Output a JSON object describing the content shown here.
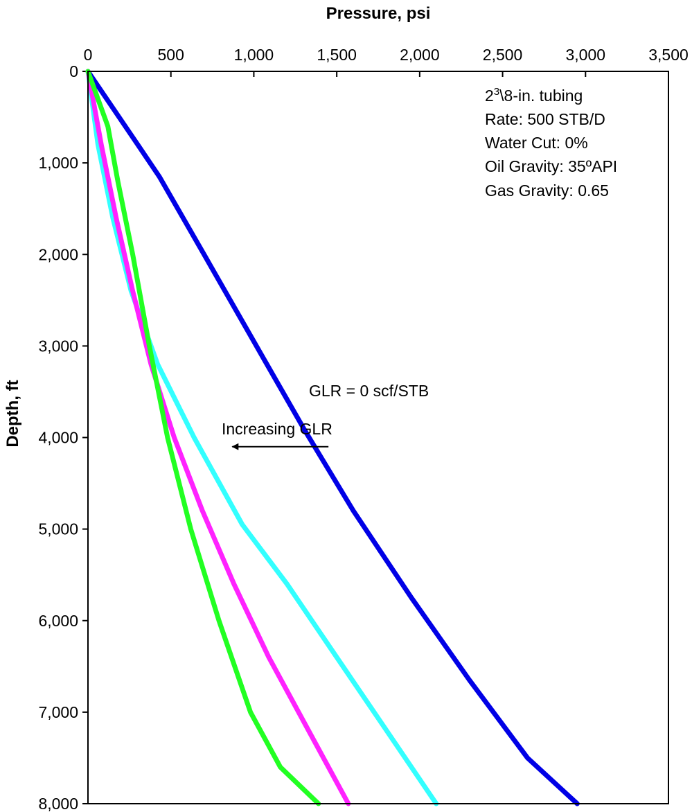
{
  "chart_data": {
    "type": "line",
    "xlabel": "Pressure, psi",
    "ylabel": "Depth, ft",
    "xlim": [
      0,
      3500
    ],
    "ylim": [
      0,
      8000
    ],
    "x_axis_position": "top",
    "y_axis_inverted": true,
    "grid": false,
    "x_ticks": [
      0,
      500,
      1000,
      1500,
      2000,
      2500,
      3000,
      3500
    ],
    "x_tick_labels": [
      "0",
      "500",
      "1,000",
      "1,500",
      "2,000",
      "2,500",
      "3,000",
      "3,500"
    ],
    "y_ticks": [
      0,
      1000,
      2000,
      3000,
      4000,
      5000,
      6000,
      7000,
      8000
    ],
    "y_tick_labels": [
      "0",
      "1,000",
      "2,000",
      "3,000",
      "4,000",
      "5,000",
      "6,000",
      "7,000",
      "8,000"
    ],
    "series": [
      {
        "color": "#0000e6",
        "points": [
          [
            0,
            0
          ],
          [
            150,
            400
          ],
          [
            300,
            800
          ],
          [
            430,
            1150
          ],
          [
            700,
            2000
          ],
          [
            1000,
            2950
          ],
          [
            1300,
            3900
          ],
          [
            1600,
            4800
          ],
          [
            1950,
            5750
          ],
          [
            2300,
            6650
          ],
          [
            2650,
            7500
          ],
          [
            2950,
            8000
          ]
        ]
      },
      {
        "color": "#33ffff",
        "points": [
          [
            0,
            0
          ],
          [
            60,
            800
          ],
          [
            150,
            1600
          ],
          [
            260,
            2400
          ],
          [
            420,
            3200
          ],
          [
            640,
            4000
          ],
          [
            930,
            4950
          ],
          [
            1200,
            5600
          ],
          [
            1500,
            6400
          ],
          [
            1800,
            7200
          ],
          [
            2100,
            8000
          ]
        ]
      },
      {
        "color": "#ff22ff",
        "points": [
          [
            0,
            0
          ],
          [
            80,
            800
          ],
          [
            170,
            1600
          ],
          [
            270,
            2400
          ],
          [
            380,
            3200
          ],
          [
            520,
            4000
          ],
          [
            690,
            4800
          ],
          [
            880,
            5600
          ],
          [
            1090,
            6400
          ],
          [
            1330,
            7200
          ],
          [
            1570,
            8000
          ]
        ]
      },
      {
        "color": "#22ff22",
        "points": [
          [
            0,
            0
          ],
          [
            120,
            600
          ],
          [
            180,
            1200
          ],
          [
            270,
            2000
          ],
          [
            370,
            3000
          ],
          [
            480,
            4000
          ],
          [
            620,
            5000
          ],
          [
            790,
            6000
          ],
          [
            980,
            7000
          ],
          [
            1160,
            7600
          ],
          [
            1390,
            8000
          ]
        ]
      }
    ],
    "annotations": {
      "info_box": {
        "tubing_main": "2",
        "tubing_sup": "3",
        "tubing_rest": "\\8-in. tubing",
        "rate": "Rate: 500 STB/D",
        "water_cut": "Water Cut: 0%",
        "oil_gravity": "Oil Gravity: 35ºAPI",
        "gas_gravity": "Gas Gravity: 0.65"
      },
      "glr_label": "GLR = 0 scf/STB",
      "arrow_label": "Increasing  GLR",
      "arrow_from": [
        1450,
        4100
      ],
      "arrow_to": [
        870,
        4100
      ]
    }
  }
}
